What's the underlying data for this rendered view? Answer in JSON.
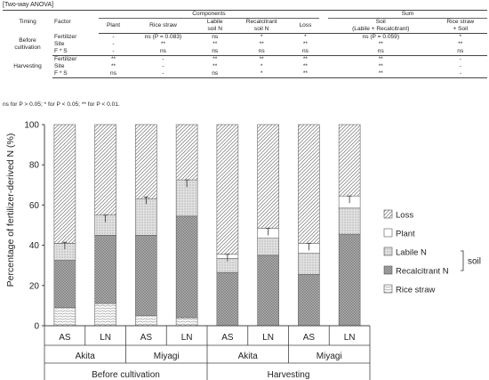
{
  "anova": {
    "caption": "[Two-way ANOVA]",
    "headers": {
      "timing": "Timing",
      "factor": "Factor",
      "components": "Components",
      "sum": "Sum",
      "plant": "Plant",
      "rice_straw": "Rice straw",
      "labile": "Labile\nsoil N",
      "recalcitrant": "Recalcitrant\nsoil N",
      "loss": "Loss",
      "soil_sum": "Soil\n(Labile + Recalcitrant)",
      "rs_soil": "Rice straw\n+ Soil"
    },
    "groups": [
      {
        "timing": "Before\ncultivation",
        "rows": [
          {
            "factor": "Fertilizer",
            "cells": [
              "-",
              "ns (P = 0.083)",
              "ns",
              "*",
              "*",
              "ns (P = 0.059)",
              "*"
            ]
          },
          {
            "factor": "Site",
            "cells": [
              "-",
              "**",
              "**",
              "**",
              "**",
              "**",
              "**"
            ]
          },
          {
            "factor": "F * S",
            "cells": [
              "-",
              "ns",
              "ns",
              "ns",
              "ns",
              "ns",
              "ns"
            ]
          }
        ]
      },
      {
        "timing": "Harvesting",
        "rows": [
          {
            "factor": "Fertilizer",
            "cells": [
              "**",
              "-",
              "**",
              "**",
              "**",
              "**",
              "-"
            ]
          },
          {
            "factor": "Site",
            "cells": [
              "**",
              "-",
              "**",
              "*",
              "**",
              "**",
              "-"
            ]
          },
          {
            "factor": "F * S",
            "cells": [
              "ns",
              "-",
              "ns",
              "*",
              "**",
              "**",
              "-"
            ]
          }
        ]
      }
    ],
    "note": "ns for P > 0.05; * for P < 0.05; ** for P < 0.01."
  },
  "chart_data": {
    "type": "bar",
    "stacked": true,
    "ylabel": "Percentage of fertilizer-derived N (%)",
    "ylim": [
      0,
      100
    ],
    "yticks": [
      0,
      20,
      40,
      60,
      80,
      100
    ],
    "categories": [
      "AS",
      "LN",
      "AS",
      "LN",
      "AS",
      "LN",
      "AS",
      "LN"
    ],
    "sites": [
      "Akita",
      "Miyagi",
      "Akita",
      "Miyagi"
    ],
    "timings": [
      "Before cultivation",
      "Harvesting"
    ],
    "series": [
      {
        "name": "Rice straw",
        "values": [
          9,
          11,
          5,
          4,
          0,
          0,
          0,
          0
        ]
      },
      {
        "name": "Recalcitrant N",
        "values": [
          23.5,
          34,
          40,
          50.5,
          26.5,
          35,
          25.5,
          45.5
        ]
      },
      {
        "name": "Labile N",
        "values": [
          8.5,
          10,
          18,
          18,
          7,
          8.5,
          10.5,
          13
        ]
      },
      {
        "name": "Plant",
        "values": [
          0,
          0,
          0,
          0,
          2,
          5,
          5,
          6
        ]
      },
      {
        "name": "Loss",
        "values": [
          59,
          45,
          37,
          27.5,
          64.5,
          51.5,
          59,
          35.5
        ]
      }
    ],
    "error_tops": [
      41.5,
      55,
      64,
      72.5,
      35.5,
      48.5,
      41,
      64.5
    ],
    "legend": [
      "Loss",
      "Plant",
      "Labile N",
      "Recalcitrant N",
      "Rice straw"
    ],
    "legend_bracket_label": "soil",
    "legend_position": "right",
    "colors": {
      "loss": "#777777",
      "plant": "#ffffff",
      "labile": "#bdbdbd",
      "recalcitrant": "#8a8a8a",
      "rice_straw": "#999999"
    }
  }
}
